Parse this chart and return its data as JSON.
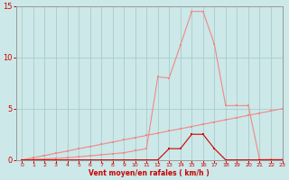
{
  "xlabel": "Vent moyen/en rafales ( km/h )",
  "bg_color": "#cce8e8",
  "grid_color": "#aacccc",
  "axis_color": "#999999",
  "line_gust_color": "#f08888",
  "line_mean_color": "#cc0000",
  "line_diag_color": "#f08888",
  "x": [
    0,
    1,
    2,
    3,
    4,
    5,
    6,
    7,
    8,
    9,
    10,
    11,
    12,
    13,
    14,
    15,
    16,
    17,
    18,
    19,
    20,
    21,
    22,
    23
  ],
  "y_rafales": [
    0.0,
    0.05,
    0.1,
    0.15,
    0.2,
    0.3,
    0.4,
    0.5,
    0.6,
    0.7,
    0.9,
    1.1,
    8.1,
    8.0,
    11.2,
    14.5,
    14.5,
    11.3,
    5.3,
    5.3,
    5.3,
    0.05,
    0.05,
    0.05
  ],
  "y_moyen": [
    0,
    0,
    0,
    0,
    0,
    0,
    0,
    0,
    0,
    0,
    0,
    0,
    0,
    1.1,
    1.1,
    2.5,
    2.5,
    1.1,
    0,
    0,
    0,
    0,
    0,
    0
  ],
  "y_diag": [
    0.0,
    0.22,
    0.43,
    0.65,
    0.87,
    1.09,
    1.3,
    1.52,
    1.74,
    1.96,
    2.17,
    2.39,
    2.61,
    2.83,
    3.04,
    3.26,
    3.48,
    3.7,
    3.91,
    4.13,
    4.35,
    4.57,
    4.78,
    5.0
  ],
  "xlim": [
    -0.5,
    23
  ],
  "ylim": [
    0,
    15
  ],
  "yticks": [
    0,
    5,
    10,
    15
  ],
  "xticks": [
    0,
    1,
    2,
    3,
    4,
    5,
    6,
    7,
    8,
    9,
    10,
    11,
    12,
    13,
    14,
    15,
    16,
    17,
    18,
    19,
    20,
    21,
    22,
    23
  ],
  "tick_color": "#cc0000",
  "label_color": "#cc0000",
  "marker_size": 2.0,
  "linewidth": 0.8
}
